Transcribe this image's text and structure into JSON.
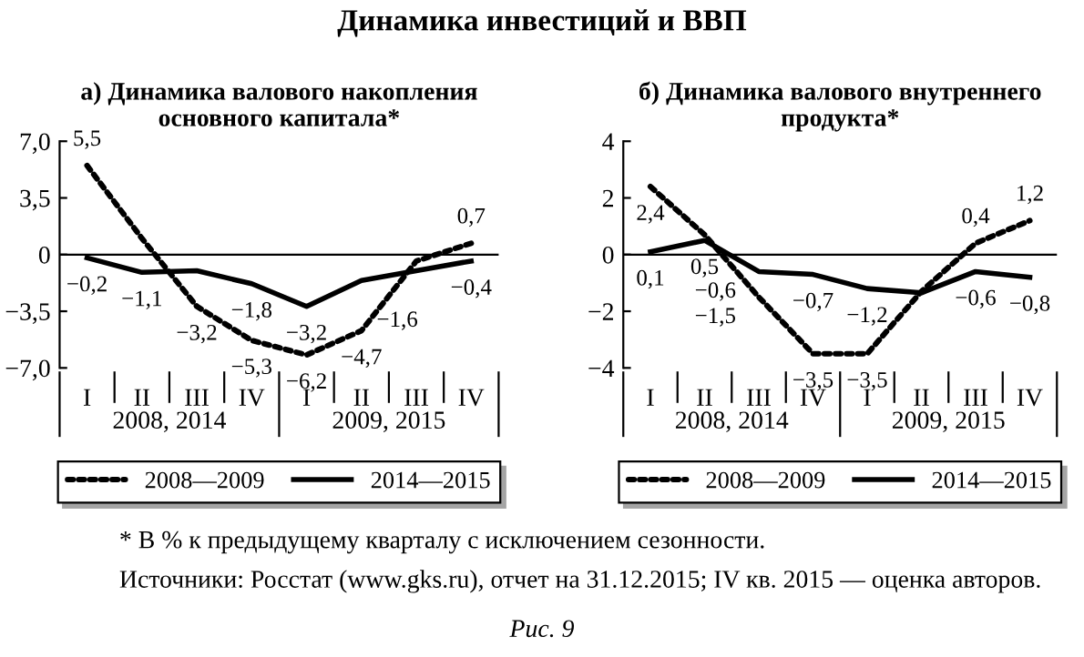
{
  "chart_data": [
    {
      "type": "line",
      "title": "а) Динамика валового накопления\nосновного капитала*",
      "categories": [
        "I",
        "II",
        "III",
        "IV",
        "I",
        "II",
        "III",
        "IV"
      ],
      "series": [
        {
          "name": "2008—2009",
          "color": "#000000",
          "line_style": "dotted",
          "values": [
            5.5,
            1.0,
            -3.2,
            -5.3,
            -6.2,
            -4.7,
            -0.4,
            0.7
          ],
          "value_labels": [
            "5,5",
            null,
            "−3,2",
            "−5,3",
            "−6,2",
            "−4,7",
            null,
            "0,7"
          ]
        },
        {
          "name": "2014—2015",
          "color": "#000000",
          "line_style": "solid",
          "values": [
            -0.2,
            -1.1,
            -1.0,
            -1.8,
            -3.2,
            -1.6,
            -1.0,
            -0.4
          ],
          "value_labels": [
            "−0,2",
            "−1,1",
            null,
            "−1,8",
            "−3,2",
            "−1,6",
            null,
            "−0,4"
          ]
        }
      ],
      "ylim": [
        -7,
        7
      ],
      "yticks": [
        {
          "value": -7,
          "label": "−7,0"
        },
        {
          "value": -3.5,
          "label": "−3,5"
        },
        0,
        {
          "value": 3.5,
          "label": "3,5"
        },
        {
          "value": 7,
          "label": "7,0"
        }
      ],
      "annotations": [
        "2008, 2014",
        "2009, 2015"
      ],
      "ref_lines": [
        {
          "axis": "y",
          "value": 0,
          "color": "#000000"
        }
      ],
      "legend": "bottom",
      "grid": false,
      "marker": "none"
    },
    {
      "type": "line",
      "title": "б) Динамика валового внутреннего\nпродукта*",
      "categories": [
        "I",
        "II",
        "III",
        "IV",
        "I",
        "II",
        "III",
        "IV"
      ],
      "series": [
        {
          "name": "2008—2009",
          "color": "#000000",
          "line_style": "dotted",
          "values": [
            2.4,
            0.7,
            -1.5,
            -3.5,
            -3.5,
            -1.3,
            0.4,
            1.2
          ],
          "value_labels": [
            "2,4",
            null,
            "−1,5",
            "−3,5",
            "−3,5",
            null,
            "0,4",
            "1,2"
          ]
        },
        {
          "name": "2014—2015",
          "color": "#000000",
          "line_style": "solid",
          "values": [
            0.1,
            0.5,
            -0.6,
            -0.7,
            -1.2,
            -1.35,
            -0.6,
            -0.8
          ],
          "value_labels": [
            "0,1",
            "0,5",
            "−0,6",
            "−0,7",
            "−1,2",
            null,
            "−0,6",
            "−0,8"
          ]
        }
      ],
      "ylim": [
        -4,
        4
      ],
      "yticks": [
        {
          "value": -4,
          "label": "−4"
        },
        {
          "value": -2,
          "label": "−2"
        },
        0,
        2,
        4
      ],
      "annotations": [
        "2008, 2014",
        "2009, 2015"
      ],
      "ref_lines": [
        {
          "axis": "y",
          "value": 0,
          "color": "#000000"
        }
      ],
      "legend": "bottom",
      "grid": false,
      "marker": "none"
    },
    {
      "type": "other",
      "title": "Динамика инвестиций и ВВП",
      "annotations": [
        "* В % к предыдущему кварталу с исключением сезонности.",
        "Источники: Росстат (www.gks.ru), отчет на 31.12.2015; IV кв. 2015 — оценка авторов.",
        "Рис. 9"
      ]
    }
  ]
}
